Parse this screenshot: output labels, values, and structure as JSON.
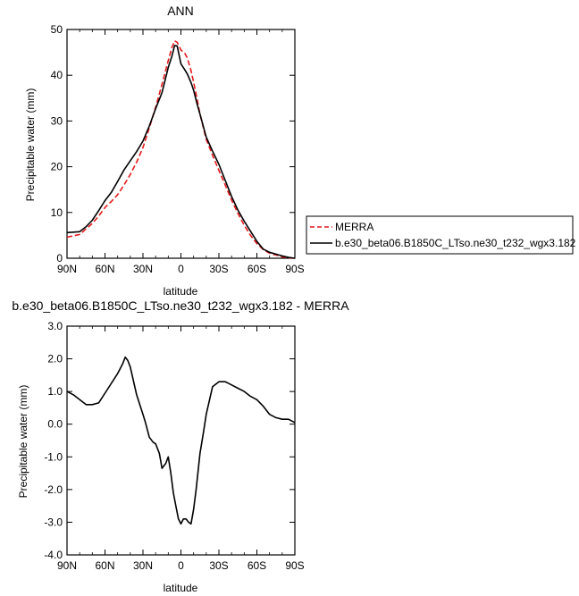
{
  "chart_data": [
    {
      "type": "line",
      "title": "ANN",
      "xlabel": "latitude",
      "ylabel": "Precipitable water (mm)",
      "xlim": [
        90,
        -90
      ],
      "ylim": [
        0,
        50
      ],
      "xticks": [
        90,
        60,
        30,
        0,
        -30,
        -60,
        -90
      ],
      "xtick_labels": [
        "90N",
        "60N",
        "30N",
        "0",
        "30S",
        "60S",
        "90S"
      ],
      "yticks": [
        0,
        10,
        20,
        30,
        40,
        50
      ],
      "ytick_labels": [
        "0",
        "10",
        "20",
        "30",
        "40",
        "50"
      ],
      "legend_position": "outside-right",
      "series": [
        {
          "name": "MERRA",
          "color": "#e41a1c",
          "dash": "dashed",
          "x": [
            90,
            80,
            75,
            70,
            65,
            60,
            55,
            50,
            45,
            40,
            35,
            30,
            25,
            20,
            15,
            10,
            7,
            5,
            3,
            0,
            -3,
            -5,
            -8,
            -10,
            -13,
            -15,
            -20,
            -25,
            -30,
            -35,
            -40,
            -45,
            -50,
            -55,
            -60,
            -65,
            -70,
            -75,
            -80,
            -85,
            -90
          ],
          "y": [
            4.6,
            5.2,
            6.4,
            7.6,
            9.2,
            11.1,
            12.4,
            13.9,
            16.0,
            18.3,
            21.0,
            24.2,
            28.5,
            33.0,
            38.0,
            43.2,
            46.2,
            47.5,
            47.2,
            45.5,
            44.8,
            43.8,
            41.0,
            38.5,
            34.5,
            31.5,
            26.0,
            22.5,
            19.2,
            16.0,
            12.7,
            9.8,
            7.2,
            5.0,
            3.2,
            1.9,
            1.1,
            0.7,
            0.3,
            0.1,
            0.0
          ]
        },
        {
          "name": "b.e30_beta06.B1850C_LTso.ne30_t232_wgx3.182",
          "color": "#000000",
          "dash": "solid",
          "x": [
            90,
            80,
            75,
            70,
            65,
            60,
            55,
            50,
            45,
            40,
            35,
            30,
            25,
            20,
            15,
            10,
            7,
            5,
            3,
            0,
            -3,
            -5,
            -8,
            -10,
            -13,
            -15,
            -20,
            -25,
            -30,
            -35,
            -40,
            -45,
            -50,
            -55,
            -60,
            -65,
            -70,
            -75,
            -80,
            -85,
            -90
          ],
          "y": [
            5.6,
            5.8,
            6.9,
            8.3,
            10.4,
            12.6,
            14.4,
            16.8,
            19.3,
            21.3,
            23.3,
            25.6,
            28.9,
            32.7,
            36.2,
            41.7,
            44.3,
            46.5,
            46.4,
            42.5,
            41.2,
            40.3,
            38.4,
            36.7,
            33.5,
            31.5,
            26.5,
            23.4,
            20.5,
            17.0,
            13.5,
            10.5,
            8.1,
            5.9,
            3.7,
            2.0,
            1.3,
            0.9,
            0.5,
            0.2,
            0.0
          ]
        }
      ]
    },
    {
      "type": "line",
      "title": "b.e30_beta06.B1850C_LTso.ne30_t232_wgx3.182 - MERRA",
      "xlabel": "latitude",
      "ylabel": "Precipitable water (mm)",
      "xlim": [
        90,
        -90
      ],
      "ylim": [
        -4.0,
        3.0
      ],
      "xticks": [
        90,
        60,
        30,
        0,
        -30,
        -60,
        -90
      ],
      "xtick_labels": [
        "90N",
        "60N",
        "30N",
        "0",
        "30S",
        "60S",
        "90S"
      ],
      "yticks": [
        3.0,
        2.0,
        1.0,
        0.0,
        -1.0,
        -2.0,
        -3.0,
        -4.0
      ],
      "ytick_labels": [
        "3.0",
        "2.0",
        "1.0",
        "0.0",
        "-1.0",
        "-2.0",
        "-3.0",
        "-4.0"
      ],
      "series": [
        {
          "color": "#000000",
          "dash": "solid",
          "x": [
            90,
            85,
            80,
            75,
            70,
            65,
            60,
            55,
            50,
            46,
            44,
            42,
            40,
            35,
            30,
            28,
            25,
            22,
            20,
            17,
            15,
            12,
            10,
            8,
            6,
            4,
            2,
            0,
            -2,
            -4,
            -6,
            -8,
            -10,
            -12,
            -15,
            -18,
            -20,
            -25,
            -30,
            -35,
            -40,
            -45,
            -50,
            -55,
            -60,
            -65,
            -70,
            -75,
            -80,
            -85,
            -90
          ],
          "y": [
            1.0,
            0.9,
            0.75,
            0.6,
            0.6,
            0.65,
            0.95,
            1.25,
            1.55,
            1.85,
            2.05,
            1.95,
            1.75,
            0.9,
            0.3,
            0.05,
            -0.4,
            -0.55,
            -0.6,
            -0.9,
            -1.35,
            -1.2,
            -1.0,
            -1.5,
            -2.1,
            -2.5,
            -2.9,
            -3.05,
            -2.9,
            -2.9,
            -3.0,
            -3.05,
            -2.6,
            -2.0,
            -0.9,
            -0.2,
            0.3,
            1.15,
            1.3,
            1.3,
            1.2,
            1.1,
            1.0,
            0.85,
            0.75,
            0.55,
            0.3,
            0.2,
            0.15,
            0.15,
            0.05
          ]
        }
      ]
    }
  ]
}
